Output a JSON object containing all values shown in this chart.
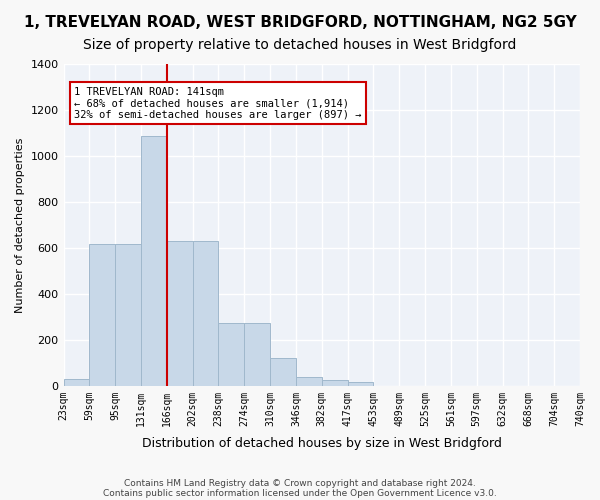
{
  "title": "1, TREVELYAN ROAD, WEST BRIDGFORD, NOTTINGHAM, NG2 5GY",
  "subtitle": "Size of property relative to detached houses in West Bridgford",
  "xlabel": "Distribution of detached houses by size in West Bridgford",
  "ylabel": "Number of detached properties",
  "bar_values": [
    30,
    615,
    615,
    1085,
    630,
    630,
    275,
    275,
    120,
    40,
    25,
    15,
    0,
    0,
    0,
    0,
    0,
    0,
    0,
    0
  ],
  "bin_labels": [
    "23sqm",
    "59sqm",
    "95sqm",
    "131sqm",
    "166sqm",
    "202sqm",
    "238sqm",
    "274sqm",
    "310sqm",
    "346sqm",
    "382sqm",
    "417sqm",
    "453sqm",
    "489sqm",
    "525sqm",
    "561sqm",
    "597sqm",
    "632sqm",
    "668sqm",
    "704sqm",
    "740sqm"
  ],
  "bar_color": "#c8d8e8",
  "bar_edge_color": "#a0b8cc",
  "vline_x": 3.5,
  "vline_color": "#cc0000",
  "annotation_text": "1 TREVELYAN ROAD: 141sqm\n← 68% of detached houses are smaller (1,914)\n32% of semi-detached houses are larger (897) →",
  "annotation_box_color": "#ffffff",
  "annotation_box_edge": "#cc0000",
  "ylim": [
    0,
    1400
  ],
  "yticks": [
    0,
    200,
    400,
    600,
    800,
    1000,
    1200,
    1400
  ],
  "footer1": "Contains HM Land Registry data © Crown copyright and database right 2024.",
  "footer2": "Contains public sector information licensed under the Open Government Licence v3.0.",
  "background_color": "#eef2f8",
  "grid_color": "#ffffff",
  "title_fontsize": 11,
  "subtitle_fontsize": 10
}
